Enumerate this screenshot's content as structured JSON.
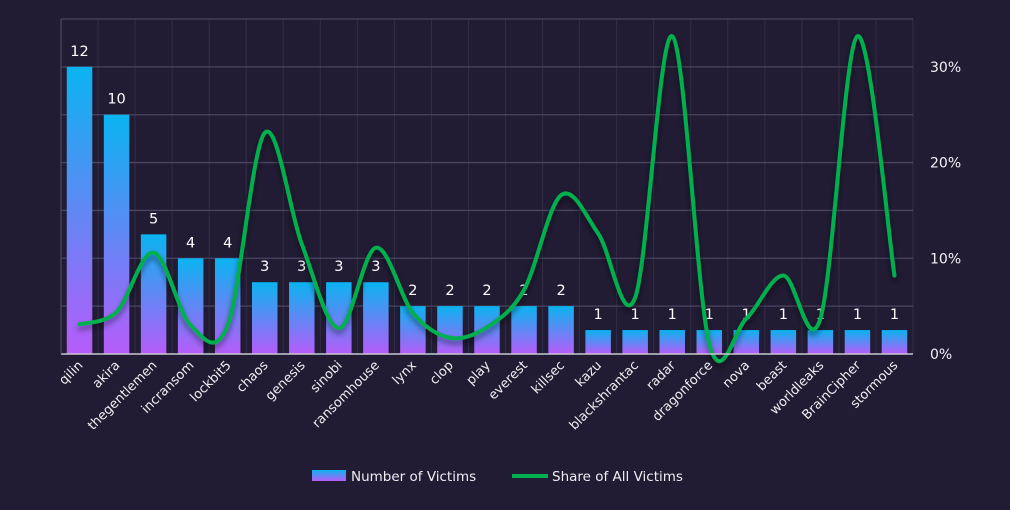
{
  "chart_data": {
    "type": "bar",
    "title": "",
    "xlabel": "",
    "ylabel": "",
    "y2label": "",
    "categories": [
      "qilin",
      "akira",
      "thegentlemen",
      "incransom",
      "lockbit5",
      "chaos",
      "genesis",
      "sinobi",
      "ransomhouse",
      "lynx",
      "clop",
      "play",
      "everest",
      "killsec",
      "kazu",
      "blackshrantac",
      "radar",
      "dragonforce",
      "nova",
      "beast",
      "worldleaks",
      "BrainCipher",
      "stormous"
    ],
    "series": [
      {
        "name": "Number of Victims",
        "type": "bar",
        "axis": "left",
        "color_top": "#0ab4f0",
        "color_bottom": "#b65cf9",
        "values": [
          12,
          10,
          5,
          4,
          4,
          3,
          3,
          3,
          3,
          2,
          2,
          2,
          2,
          2,
          1,
          1,
          1,
          1,
          1,
          1,
          1,
          1,
          1
        ],
        "data_labels": [
          "12",
          "10",
          "5",
          "4",
          "4",
          "3",
          "3",
          "3",
          "3",
          "2",
          "2",
          "2",
          "2",
          "2",
          "1",
          "1",
          "1",
          "1",
          "1",
          "1",
          "1",
          "1",
          "1"
        ]
      },
      {
        "name": "Share of All Victims",
        "type": "line",
        "axis": "right",
        "smooth": true,
        "color": "#00b050",
        "unit": "%",
        "values": [
          3.1,
          4.4,
          10.6,
          3.0,
          3.0,
          23.1,
          11.5,
          2.7,
          11.1,
          4.3,
          1.7,
          2.8,
          6.7,
          16.6,
          12.6,
          5.9,
          33.2,
          1.1,
          3.7,
          8.2,
          3.7,
          33.2,
          8.2
        ]
      }
    ],
    "ylim": [
      0,
      14
    ],
    "y2lim": [
      0,
      35
    ],
    "y2ticks": [
      {
        "value": 0,
        "label": "0%"
      },
      {
        "value": 10,
        "label": "10%"
      },
      {
        "value": 20,
        "label": "20%"
      },
      {
        "value": 30,
        "label": "30%"
      }
    ],
    "grid": true,
    "grid_steps": 7,
    "legend": {
      "position": "bottom-center",
      "entries": [
        {
          "label": "Number of Victims",
          "kind": "bar"
        },
        {
          "label": "Share of All Victims",
          "kind": "line"
        }
      ]
    },
    "background": "#211b33"
  }
}
